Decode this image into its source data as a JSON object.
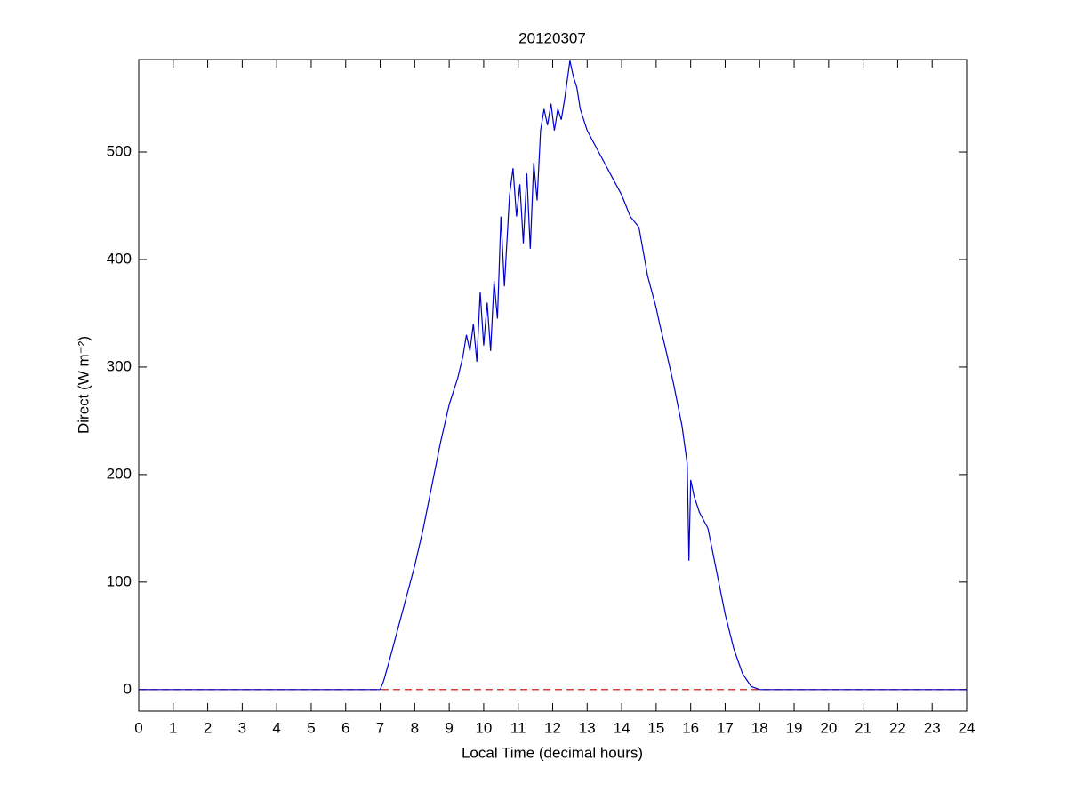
{
  "chart_data": {
    "type": "line",
    "title": "20120307",
    "xlabel": "Local Time (decimal hours)",
    "ylabel": "Direct (W m⁻²)",
    "x": [
      0,
      1,
      2,
      3,
      4,
      5,
      6,
      7,
      7.1,
      7.25,
      7.5,
      7.75,
      8,
      8.25,
      8.5,
      8.75,
      9,
      9.25,
      9.4,
      9.5,
      9.6,
      9.7,
      9.8,
      9.9,
      10,
      10.1,
      10.2,
      10.3,
      10.4,
      10.5,
      10.6,
      10.75,
      10.85,
      10.95,
      11.05,
      11.15,
      11.25,
      11.35,
      11.45,
      11.55,
      11.65,
      11.75,
      11.85,
      11.95,
      12.05,
      12.15,
      12.25,
      12.35,
      12.5,
      12.6,
      12.7,
      12.8,
      13,
      13.25,
      13.5,
      13.75,
      14,
      14.25,
      14.5,
      14.75,
      15,
      15.1,
      15.25,
      15.5,
      15.75,
      15.9,
      15.95,
      16,
      16.1,
      16.25,
      16.5,
      16.75,
      17,
      17.25,
      17.5,
      17.75,
      18,
      19,
      20,
      21,
      22,
      23,
      24
    ],
    "series": [
      {
        "name": "Direct",
        "color": "#0000cc",
        "values": [
          0,
          0,
          0,
          0,
          0,
          0,
          0,
          0,
          8,
          25,
          55,
          85,
          115,
          150,
          190,
          230,
          265,
          290,
          310,
          330,
          315,
          340,
          305,
          370,
          320,
          360,
          315,
          380,
          345,
          440,
          375,
          460,
          485,
          440,
          470,
          415,
          480,
          410,
          490,
          455,
          520,
          540,
          525,
          545,
          520,
          540,
          530,
          550,
          585,
          570,
          560,
          540,
          520,
          505,
          490,
          475,
          460,
          440,
          430,
          385,
          355,
          340,
          320,
          285,
          245,
          210,
          120,
          195,
          180,
          165,
          150,
          110,
          70,
          38,
          15,
          3,
          0,
          0,
          0,
          0,
          0,
          0,
          0
        ]
      }
    ],
    "hline": {
      "value": 0,
      "color": "#cc0000"
    },
    "xlim": [
      0,
      24
    ],
    "xticks": [
      0,
      1,
      2,
      3,
      4,
      5,
      6,
      7,
      8,
      9,
      10,
      11,
      12,
      13,
      14,
      15,
      16,
      17,
      18,
      19,
      20,
      21,
      22,
      23,
      24
    ],
    "ylim": [
      -20,
      586
    ],
    "yticks": [
      0,
      100,
      200,
      300,
      400,
      500
    ]
  }
}
